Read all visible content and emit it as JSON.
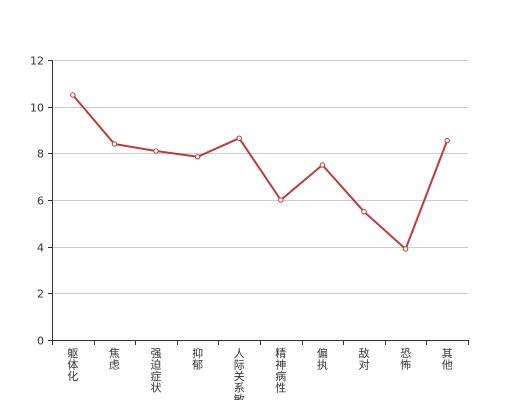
{
  "chart_data": {
    "type": "line",
    "title": "",
    "xlabel": "",
    "ylabel": "",
    "categories": [
      "躯体化",
      "焦虑",
      "强迫症状",
      "抑郁",
      "人际关系敏感",
      "精神病性",
      "偏执",
      "敌对",
      "恐怖",
      "其他"
    ],
    "series": [
      {
        "values": [
          10.5,
          8.4,
          8.1,
          7.85,
          8.65,
          6.0,
          7.5,
          5.5,
          3.9,
          8.55
        ],
        "color": "#c0393b"
      }
    ],
    "ylim": [
      0,
      12
    ],
    "yticks": [
      0,
      2,
      4,
      6,
      8,
      10,
      12
    ],
    "grid": true,
    "legend": "none"
  }
}
